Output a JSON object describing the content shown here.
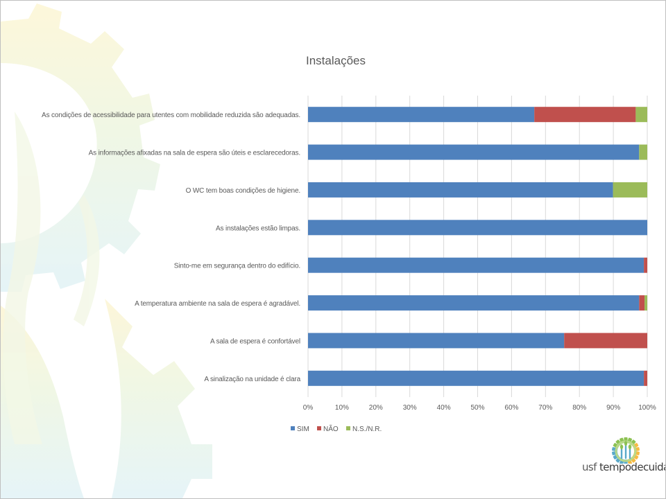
{
  "colors": {
    "sim": "#4f81bd",
    "nao": "#c0504d",
    "ns": "#9bbb59",
    "grid": "#d9d9d9",
    "text": "#595959",
    "title": "#595959"
  },
  "logo": {
    "text_part1": "usf ",
    "text_part2": "tempodecuidar",
    "icon": "wheat-gear-emblem-icon"
  },
  "chart_data": {
    "type": "bar",
    "orientation": "horizontal",
    "stacked": "percent",
    "title": "Instalações",
    "categories": [
      "As condições de acessibilidade para utentes com mobilidade reduzida são adequadas.",
      "As informações afixadas na sala de espera são úteis e esclarecedoras.",
      "O WC tem boas condições de higiene.",
      "As instalações estão limpas.",
      "Sinto-me em segurança dentro do edifício.",
      "A temperatura ambiente na sala de espera é agradável.",
      "A sala de espera é confortável",
      "A sinalização na unidade é clara"
    ],
    "series": [
      {
        "name": "SIM",
        "values": [
          66.7,
          97.6,
          89.9,
          100,
          99.0,
          97.6,
          75.5,
          99.0
        ]
      },
      {
        "name": "NÃO",
        "values": [
          29.9,
          0,
          0,
          0,
          1.0,
          1.6,
          24.5,
          1.0
        ]
      },
      {
        "name": "N.S./N.R.",
        "values": [
          3.4,
          2.4,
          10.1,
          0,
          0,
          0.8,
          0,
          0
        ]
      }
    ],
    "xlim": [
      0,
      100
    ],
    "xticks": [
      "0%",
      "10%",
      "20%",
      "30%",
      "40%",
      "50%",
      "60%",
      "70%",
      "80%",
      "90%",
      "100%"
    ],
    "grid": true,
    "legend": "bottom-left"
  }
}
